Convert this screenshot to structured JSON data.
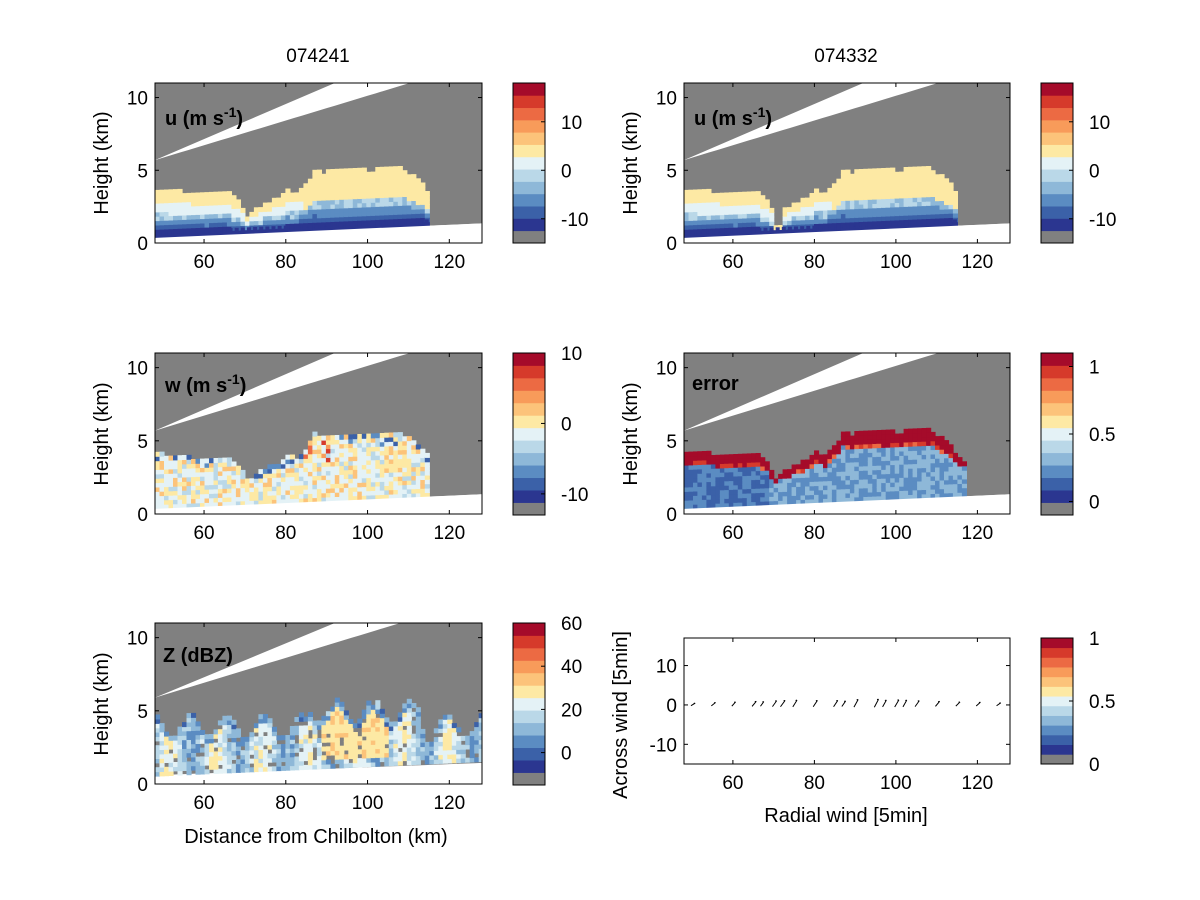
{
  "figure_titles": {
    "left": "074241",
    "right": "074332"
  },
  "colors": {
    "colormap": [
      "#2b3690",
      "#3b61a8",
      "#5b8cc2",
      "#8eb8d8",
      "#bad8e8",
      "#e4f2f6",
      "#fde9a4",
      "#fcc37a",
      "#f89b5a",
      "#ec6a43",
      "#d63a2b",
      "#a50b2a"
    ],
    "missing": "#808080"
  },
  "chart_data": [
    {
      "type": "heatmap",
      "id": "u1",
      "label_main": "u (m s",
      "label_sup": "-1",
      "label_end": ")",
      "xlabel": "",
      "ylabel": "Height (km)",
      "xlim": [
        48,
        128
      ],
      "ylim": [
        0,
        11
      ],
      "xticks": [
        "60",
        "80",
        "100",
        "120"
      ],
      "yticks": [
        "0",
        "5",
        "10"
      ],
      "colorbar": {
        "clim": [
          -15,
          18
        ],
        "ticks": [
          "-10",
          "0",
          "10"
        ]
      }
    },
    {
      "type": "heatmap",
      "id": "u2",
      "label_main": "u (m s",
      "label_sup": "-1",
      "label_end": ")",
      "xlabel": "",
      "ylabel": "Height (km)",
      "xlim": [
        48,
        128
      ],
      "ylim": [
        0,
        11
      ],
      "xticks": [
        "60",
        "80",
        "100",
        "120"
      ],
      "yticks": [
        "0",
        "5",
        "10"
      ],
      "colorbar": {
        "clim": [
          -15,
          18
        ],
        "ticks": [
          "-10",
          "0",
          "10"
        ]
      }
    },
    {
      "type": "heatmap",
      "id": "w",
      "label_main": "w (m s",
      "label_sup": "-1",
      "label_end": ")",
      "xlabel": "",
      "ylabel": "Height (km)",
      "xlim": [
        48,
        128
      ],
      "ylim": [
        0,
        11
      ],
      "xticks": [
        "60",
        "80",
        "100",
        "120"
      ],
      "yticks": [
        "0",
        "5",
        "10"
      ],
      "colorbar": {
        "clim": [
          -13,
          10
        ],
        "ticks": [
          "-10",
          "0",
          "10"
        ]
      }
    },
    {
      "type": "heatmap",
      "id": "err",
      "label_main": "error",
      "label_sup": "",
      "label_end": "",
      "xlabel": "",
      "ylabel": "Height (km)",
      "xlim": [
        48,
        128
      ],
      "ylim": [
        0,
        11
      ],
      "xticks": [
        "60",
        "80",
        "100",
        "120"
      ],
      "yticks": [
        "0",
        "5",
        "10"
      ],
      "colorbar": {
        "clim": [
          -0.1,
          1.1
        ],
        "ticks": [
          "0",
          "0.5",
          "1"
        ]
      }
    },
    {
      "type": "heatmap",
      "id": "z",
      "label_main": "Z (dBZ)",
      "label_sup": "",
      "label_end": "",
      "xlabel": "Distance from Chilbolton (km)",
      "ylabel": "Height (km)",
      "xlim": [
        48,
        128
      ],
      "ylim": [
        0,
        11
      ],
      "xticks": [
        "60",
        "80",
        "100",
        "120"
      ],
      "yticks": [
        "0",
        "5",
        "10"
      ],
      "colorbar": {
        "clim": [
          -15,
          60
        ],
        "ticks": [
          "0",
          "20",
          "40",
          "60"
        ]
      }
    },
    {
      "type": "scatter",
      "id": "quiver",
      "xlabel": "Radial wind [5min]",
      "ylabel": "Across wind [5min]",
      "xlim": [
        48,
        128
      ],
      "ylim": [
        -15,
        17
      ],
      "xticks": [
        "60",
        "80",
        "100",
        "120"
      ],
      "yticks": [
        "-10",
        "0",
        "10"
      ],
      "arrows": [
        {
          "x": 50,
          "u": 1.0,
          "v": 0.6
        },
        {
          "x": 55,
          "u": 1.0,
          "v": 0.8
        },
        {
          "x": 60,
          "u": 0.9,
          "v": 1.0
        },
        {
          "x": 65,
          "u": 1.0,
          "v": 1.2
        },
        {
          "x": 67,
          "u": 0.8,
          "v": 1.1
        },
        {
          "x": 70,
          "u": 1.0,
          "v": 1.4
        },
        {
          "x": 72,
          "u": 1.1,
          "v": 1.5
        },
        {
          "x": 75,
          "u": 1.0,
          "v": 1.6
        },
        {
          "x": 80,
          "u": 1.0,
          "v": 1.5
        },
        {
          "x": 85,
          "u": 1.0,
          "v": 1.5
        },
        {
          "x": 87,
          "u": 0.9,
          "v": 1.3
        },
        {
          "x": 90,
          "u": 1.0,
          "v": 1.8
        },
        {
          "x": 95,
          "u": 1.0,
          "v": 1.9
        },
        {
          "x": 97,
          "u": 0.9,
          "v": 1.6
        },
        {
          "x": 100,
          "u": 1.0,
          "v": 1.7
        },
        {
          "x": 102,
          "u": 0.9,
          "v": 1.6
        },
        {
          "x": 105,
          "u": 1.0,
          "v": 1.4
        },
        {
          "x": 110,
          "u": 1.0,
          "v": 1.2
        },
        {
          "x": 115,
          "u": 1.0,
          "v": 1.0
        },
        {
          "x": 120,
          "u": 1.0,
          "v": 0.9
        },
        {
          "x": 125,
          "u": 1.0,
          "v": 0.7
        }
      ],
      "colorbar": {
        "clim": [
          0,
          1
        ],
        "ticks": [
          "0",
          "0.5",
          "1"
        ]
      }
    }
  ]
}
